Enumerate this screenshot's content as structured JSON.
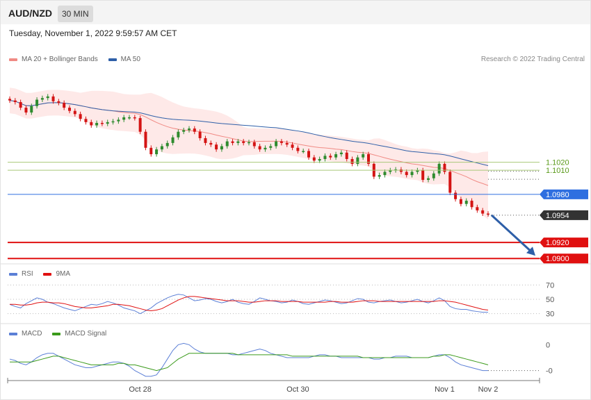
{
  "header": {
    "symbol": "AUD/NZD",
    "timeframe": "30 MIN",
    "date": "Tuesday, November 1, 2022 9:59:57 AM CET",
    "credit": "Research © 2022 Trading Central"
  },
  "legends": {
    "main": [
      {
        "label": "MA 20 + Bollinger Bands",
        "color": "#f08a84"
      },
      {
        "label": "MA 50",
        "color": "#2e5fa8"
      }
    ],
    "rsi": [
      {
        "label": "RSI",
        "color": "#5b7fd6"
      },
      {
        "label": "9MA",
        "color": "#e01010"
      }
    ],
    "macd": [
      {
        "label": "MACD",
        "color": "#5b7fd6"
      },
      {
        "label": "MACD Signal",
        "color": "#3a9a1a"
      }
    ]
  },
  "colors": {
    "up_candle": "#2e8b2e",
    "down_candle": "#d41414",
    "support": "#e01010",
    "resistance": "#5a9a1a",
    "pivot": "#2f6fe0",
    "current": "#333333",
    "arrow": "#2e5fa8"
  },
  "chart_data": [
    {
      "type": "candlestick",
      "panel": "price",
      "x_tick_labels": [
        "Oct 28",
        "Oct 30",
        "Nov 1",
        "Nov 2"
      ],
      "ylim": [
        1.0895,
        1.114
      ],
      "closes": [
        1.1097,
        1.1095,
        1.1088,
        1.1082,
        1.109,
        1.1098,
        1.11,
        1.1102,
        1.1096,
        1.1094,
        1.1088,
        1.1084,
        1.108,
        1.1074,
        1.107,
        1.1066,
        1.1069,
        1.1068,
        1.107,
        1.1071,
        1.1073,
        1.1076,
        1.1076,
        1.1075,
        1.1058,
        1.1038,
        1.103,
        1.1036,
        1.104,
        1.1044,
        1.1051,
        1.1058,
        1.106,
        1.1062,
        1.1058,
        1.105,
        1.1044,
        1.1042,
        1.1036,
        1.104,
        1.1046,
        1.1044,
        1.1046,
        1.1044,
        1.1045,
        1.104,
        1.1036,
        1.1038,
        1.104,
        1.1046,
        1.1044,
        1.1042,
        1.1038,
        1.1034,
        1.1034,
        1.1026,
        1.1022,
        1.1024,
        1.1028,
        1.1026,
        1.103,
        1.1032,
        1.1024,
        1.1018,
        1.1026,
        1.103,
        1.1018,
        1.1002,
        1.1004,
        1.1008,
        1.101,
        1.1011,
        1.1008,
        1.1004,
        1.1008,
        1.101,
        1.0998,
        1.1,
        1.1006,
        1.1018,
        1.1008,
        1.0982,
        1.0974,
        1.0968,
        1.0972,
        1.0964,
        1.096,
        1.0956,
        1.0955
      ],
      "levels": [
        {
          "label": "1.1020",
          "value": 1.102,
          "kind": "resistance"
        },
        {
          "label": "1.1010",
          "value": 1.101,
          "kind": "resistance"
        },
        {
          "label": "1.0980",
          "value": 1.098,
          "kind": "pivot"
        },
        {
          "label": "1.0954",
          "value": 1.0954,
          "kind": "current"
        },
        {
          "label": "1.0920",
          "value": 1.092,
          "kind": "support"
        },
        {
          "label": "1.0900",
          "value": 1.09,
          "kind": "support"
        }
      ],
      "forecast_arrow": {
        "from": 1.0954,
        "to": 1.09,
        "direction": "down"
      }
    },
    {
      "type": "line",
      "panel": "rsi",
      "tick_labels": [
        "70",
        "50",
        "30"
      ],
      "ticks": [
        70,
        50,
        30
      ],
      "ylim": [
        20,
        80
      ],
      "series": [
        {
          "name": "RSI",
          "values": [
            43,
            40,
            38,
            44,
            48,
            52,
            50,
            46,
            44,
            41,
            38,
            36,
            34,
            37,
            40,
            43,
            42,
            44,
            47,
            45,
            42,
            38,
            36,
            34,
            30,
            34,
            38,
            44,
            48,
            52,
            55,
            57,
            56,
            52,
            48,
            49,
            51,
            50,
            47,
            45,
            47,
            50,
            46,
            44,
            43,
            47,
            52,
            50,
            48,
            47,
            45,
            46,
            49,
            47,
            44,
            43,
            45,
            47,
            49,
            48,
            46,
            44,
            45,
            48,
            51,
            50,
            46,
            45,
            47,
            48,
            49,
            47,
            45,
            46,
            48,
            50,
            47,
            45,
            48,
            52,
            48,
            40,
            37,
            36,
            36,
            34,
            33,
            32,
            32
          ]
        },
        {
          "name": "9MA",
          "values": [
            43,
            43,
            42,
            42,
            43,
            45,
            46,
            46,
            45,
            45,
            44,
            42,
            40,
            39,
            38,
            38,
            39,
            40,
            41,
            43,
            43,
            42,
            41,
            39,
            37,
            35,
            34,
            35,
            37,
            41,
            45,
            49,
            52,
            54,
            54,
            53,
            52,
            51,
            50,
            49,
            48,
            48,
            48,
            47,
            46,
            46,
            47,
            48,
            48,
            48,
            47,
            47,
            47,
            47,
            46,
            46,
            46,
            46,
            46,
            47,
            47,
            46,
            46,
            46,
            47,
            48,
            48,
            48,
            47,
            47,
            47,
            47,
            47,
            47,
            47,
            47,
            47,
            47,
            47,
            48,
            48,
            47,
            46,
            44,
            42,
            40,
            38,
            36,
            35
          ]
        }
      ]
    },
    {
      "type": "line",
      "panel": "macd",
      "tick_labels": [
        "0",
        "-0"
      ],
      "ticks": [
        0.0006,
        -0.0012
      ],
      "ylim": [
        -0.0018,
        0.0012
      ],
      "series": [
        {
          "name": "MACD",
          "values": [
            -0.0004,
            -0.0005,
            -0.0007,
            -0.0008,
            -0.0006,
            -0.0003,
            -0.0001,
            0.0,
            0.0,
            -0.0002,
            -0.0004,
            -0.0006,
            -0.0008,
            -0.0009,
            -0.001,
            -0.001,
            -0.0009,
            -0.0008,
            -0.0007,
            -0.0006,
            -0.0006,
            -0.0007,
            -0.0009,
            -0.0012,
            -0.0014,
            -0.0016,
            -0.0016,
            -0.0015,
            -0.001,
            -0.0004,
            0.0002,
            0.0006,
            0.0007,
            0.0006,
            0.0003,
            0.0001,
            0.0,
            0.0,
            0.0,
            0.0,
            0.0,
            -0.0001,
            -0.0001,
            0.0,
            0.0001,
            0.0002,
            0.0003,
            0.0002,
            0.0,
            -0.0001,
            -0.0002,
            -0.0003,
            -0.0003,
            -0.0003,
            -0.0003,
            -0.0003,
            -0.0002,
            -0.0001,
            -0.0001,
            -0.0002,
            -0.0002,
            -0.0003,
            -0.0003,
            -0.0003,
            -0.0003,
            -0.0003,
            -0.0003,
            -0.0004,
            -0.0004,
            -0.0003,
            -0.0003,
            -0.0002,
            -0.0002,
            -0.0002,
            -0.0003,
            -0.0003,
            -0.0003,
            -0.0003,
            -0.0002,
            -0.0001,
            -0.0001,
            -0.0003,
            -0.0006,
            -0.0008,
            -0.0009,
            -0.001,
            -0.0011,
            -0.0012,
            -0.0012
          ]
        },
        {
          "name": "MACD Signal",
          "values": [
            -0.0006,
            -0.0006,
            -0.0006,
            -0.0006,
            -0.0006,
            -0.0005,
            -0.0004,
            -0.0003,
            -0.0002,
            -0.0002,
            -0.0003,
            -0.0004,
            -0.0005,
            -0.0006,
            -0.0007,
            -0.0008,
            -0.0008,
            -0.0008,
            -0.0008,
            -0.0008,
            -0.0007,
            -0.0007,
            -0.0008,
            -0.0008,
            -0.0009,
            -0.001,
            -0.0011,
            -0.0012,
            -0.0011,
            -0.001,
            -0.0007,
            -0.0004,
            -0.0002,
            0.0,
            0.0,
            0.0,
            0.0,
            0.0,
            0.0,
            0.0,
            0.0,
            0.0,
            -0.0001,
            -0.0001,
            -0.0001,
            -0.0001,
            -0.0001,
            -0.0001,
            -0.0001,
            -0.0001,
            -0.0001,
            -0.0001,
            -0.0002,
            -0.0002,
            -0.0002,
            -0.0002,
            -0.0002,
            -0.0002,
            -0.0002,
            -0.0002,
            -0.0002,
            -0.0002,
            -0.0002,
            -0.0002,
            -0.0002,
            -0.0003,
            -0.0003,
            -0.0003,
            -0.0003,
            -0.0003,
            -0.0003,
            -0.0003,
            -0.0003,
            -0.0003,
            -0.0003,
            -0.0003,
            -0.0003,
            -0.0003,
            -0.0002,
            -0.0002,
            -0.0001,
            -0.0001,
            -0.0002,
            -0.0003,
            -0.0004,
            -0.0005,
            -0.0006,
            -0.0007,
            -0.0008
          ]
        }
      ]
    }
  ]
}
